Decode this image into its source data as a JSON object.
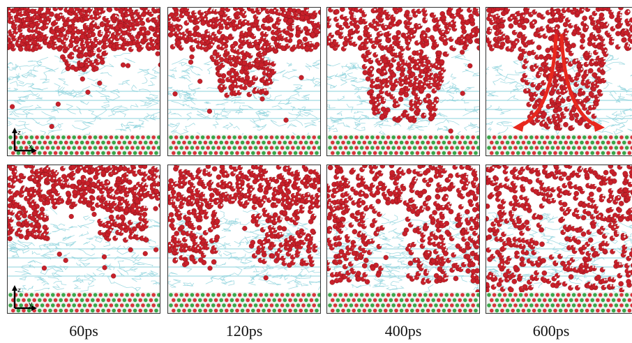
{
  "figure": {
    "time_labels": [
      "60ps",
      "120ps",
      "400ps",
      "600ps"
    ],
    "axes": {
      "top_row": {
        "vertical": "z",
        "horizontal": "x"
      },
      "bottom_row": {
        "vertical": "z",
        "horizontal": "y"
      }
    },
    "colors": {
      "water_oxygen": "#c8202a",
      "water_hydrogen": "#f2f2f2",
      "polymer": "#8fd3dd",
      "substrate_green": "#3aa64a",
      "substrate_red": "#d8343c",
      "flow_arrow": "#e8281e",
      "background": "#ffffff"
    },
    "panels": [
      {
        "row": 0,
        "col": 0,
        "penetration": 0.25,
        "channel": "center",
        "flow_arrows": false
      },
      {
        "row": 0,
        "col": 1,
        "penetration": 0.55,
        "channel": "center",
        "flow_arrows": false
      },
      {
        "row": 0,
        "col": 2,
        "penetration": 0.85,
        "channel": "center",
        "flow_arrows": false
      },
      {
        "row": 0,
        "col": 3,
        "penetration": 0.95,
        "channel": "center",
        "flow_arrows": true
      },
      {
        "row": 1,
        "col": 0,
        "penetration": 0.4,
        "channel": "sides",
        "flow_arrows": false
      },
      {
        "row": 1,
        "col": 1,
        "penetration": 0.7,
        "channel": "sides",
        "flow_arrows": false
      },
      {
        "row": 1,
        "col": 2,
        "penetration": 0.9,
        "channel": "sides",
        "flow_arrows": false
      },
      {
        "row": 1,
        "col": 3,
        "penetration": 1.0,
        "channel": "sides",
        "flow_arrows": false
      }
    ]
  }
}
